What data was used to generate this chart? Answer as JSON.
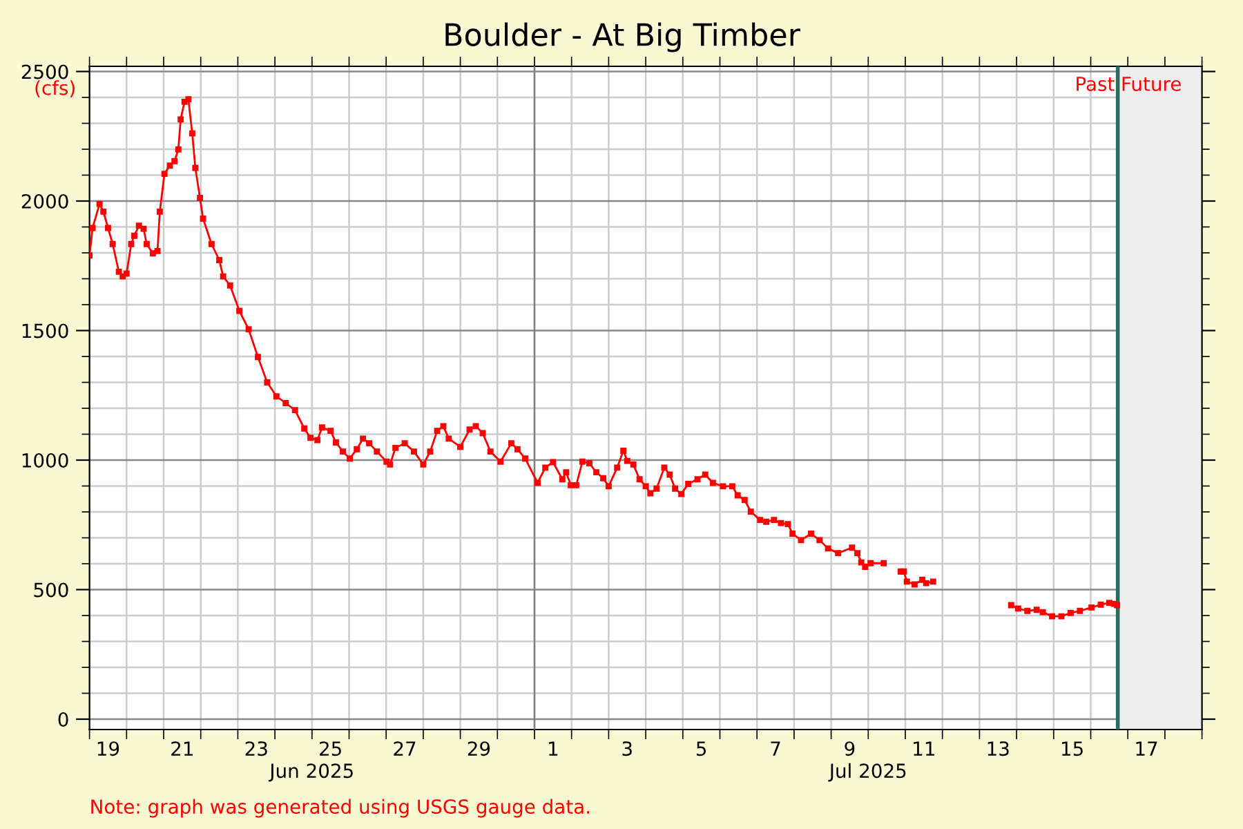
{
  "chart_data": {
    "type": "line",
    "title": "Boulder - At Big Timber",
    "ylabel": "(cfs)",
    "annotations": [
      "Note: graph was generated using USGS gauge data."
    ],
    "xlim": [
      "2025-06-19",
      "2025-07-19"
    ],
    "ylim": [
      -40,
      2520
    ],
    "xticks": [
      {
        "value": "2025-06-19T12:00",
        "label": "19"
      },
      {
        "value": "2025-06-21T12:00",
        "label": "21"
      },
      {
        "value": "2025-06-23T12:00",
        "label": "23"
      },
      {
        "value": "2025-06-25T12:00",
        "label": "25"
      },
      {
        "value": "2025-06-27T12:00",
        "label": "27"
      },
      {
        "value": "2025-06-29T12:00",
        "label": "29"
      },
      {
        "value": "2025-07-01T12:00",
        "label": "1"
      },
      {
        "value": "2025-07-03T12:00",
        "label": "3"
      },
      {
        "value": "2025-07-05T12:00",
        "label": "5"
      },
      {
        "value": "2025-07-07T12:00",
        "label": "7"
      },
      {
        "value": "2025-07-09T12:00",
        "label": "9"
      },
      {
        "value": "2025-07-11T12:00",
        "label": "11"
      },
      {
        "value": "2025-07-13T12:00",
        "label": "13"
      },
      {
        "value": "2025-07-15T12:00",
        "label": "15"
      },
      {
        "value": "2025-07-17T12:00",
        "label": "17"
      },
      {
        "value": "2025-06-19",
        "label": null
      },
      {
        "value": "2025-06-20",
        "label": null
      },
      {
        "value": "2025-06-21",
        "label": null
      },
      {
        "value": "2025-06-22",
        "label": null
      },
      {
        "value": "2025-06-23",
        "label": null
      },
      {
        "value": "2025-06-24",
        "label": null
      },
      {
        "value": "2025-06-25",
        "label": null
      },
      {
        "value": "2025-06-26",
        "label": null
      },
      {
        "value": "2025-06-27",
        "label": null
      },
      {
        "value": "2025-06-28",
        "label": null
      },
      {
        "value": "2025-06-29",
        "label": null
      },
      {
        "value": "2025-06-30",
        "label": null
      },
      {
        "value": "2025-07-01",
        "label": null
      },
      {
        "value": "2025-07-02",
        "label": null
      },
      {
        "value": "2025-07-03",
        "label": null
      },
      {
        "value": "2025-07-04",
        "label": null
      },
      {
        "value": "2025-07-05",
        "label": null
      },
      {
        "value": "2025-07-06",
        "label": null
      },
      {
        "value": "2025-07-07",
        "label": null
      },
      {
        "value": "2025-07-08",
        "label": null
      },
      {
        "value": "2025-07-09",
        "label": null
      },
      {
        "value": "2025-07-10",
        "label": null
      },
      {
        "value": "2025-07-11",
        "label": null
      },
      {
        "value": "2025-07-12",
        "label": null
      },
      {
        "value": "2025-07-13",
        "label": null
      },
      {
        "value": "2025-07-14",
        "label": null
      },
      {
        "value": "2025-07-15",
        "label": null
      },
      {
        "value": "2025-07-16",
        "label": null
      },
      {
        "value": "2025-07-17",
        "label": null
      },
      {
        "value": "2025-07-18",
        "label": null
      },
      {
        "value": "2025-07-19",
        "label": null
      }
    ],
    "x2lim": [
      "2025-06-19",
      "2025-07-19"
    ],
    "x2ticks": [
      {
        "value": "2025-06-25",
        "label": "Jun 2025"
      },
      {
        "value": "2025-07-10",
        "label": "Jul 2025"
      }
    ],
    "yticks": [
      0,
      500,
      1000,
      1500,
      2000,
      2500,
      {
        "value": 100,
        "label": null
      },
      {
        "value": 200,
        "label": null
      },
      {
        "value": 300,
        "label": null
      },
      {
        "value": 400,
        "label": null
      },
      {
        "value": 600,
        "label": null
      },
      {
        "value": 700,
        "label": null
      },
      {
        "value": 800,
        "label": null
      },
      {
        "value": 900,
        "label": null
      },
      {
        "value": 1100,
        "label": null
      },
      {
        "value": 1200,
        "label": null
      },
      {
        "value": 1300,
        "label": null
      },
      {
        "value": 1400,
        "label": null
      },
      {
        "value": 1600,
        "label": null
      },
      {
        "value": 1700,
        "label": null
      },
      {
        "value": 1800,
        "label": null
      },
      {
        "value": 1900,
        "label": null
      },
      {
        "value": 2100,
        "label": null
      },
      {
        "value": 2200,
        "label": null
      },
      {
        "value": 2300,
        "label": null
      },
      {
        "value": 2400,
        "label": null
      }
    ],
    "grid": true,
    "marker": "square",
    "line_style": "solid",
    "legend": false,
    "ref_lines": [
      {
        "axis": "x",
        "value": "2025-07-01",
        "label": null,
        "color": "#808080"
      },
      {
        "axis": "x",
        "value": "2025-07-16T17:30",
        "label": "Past",
        "color": "#2f6b5c"
      }
    ],
    "bands": [
      {
        "axis": "x",
        "from": "2025-07-16T17:30",
        "to": "2025-07-19",
        "label": "Future",
        "color": "#eeeeee"
      }
    ],
    "series": [
      {
        "color": "#ff0000",
        "x": [
          "2025-06-19T00:00",
          "2025-06-19T02:00",
          "2025-06-19T06:30",
          "2025-06-19T09:00",
          "2025-06-19T12:00",
          "2025-06-19T15:00",
          "2025-06-19T19:00",
          "2025-06-19T21:30",
          "2025-06-20T00:00",
          "2025-06-20T03:00",
          "2025-06-20T05:00",
          "2025-06-20T08:00",
          "2025-06-20T11:00",
          "2025-06-20T13:00",
          "2025-06-20T17:00",
          "2025-06-20T20:00",
          "2025-06-20T21:30",
          "2025-06-21T00:30",
          "2025-06-21T04:00",
          "2025-06-21T07:00",
          "2025-06-21T09:30",
          "2025-06-21T11:00",
          "2025-06-21T13:30",
          "2025-06-21T16:00",
          "2025-06-21T18:30",
          "2025-06-21T20:30",
          "2025-06-21T23:30",
          "2025-06-22T01:30",
          "2025-06-22T07:00",
          "2025-06-22T12:00",
          "2025-06-22T14:30",
          "2025-06-22T19:00",
          "2025-06-23T01:00",
          "2025-06-23T07:00",
          "2025-06-23T13:00",
          "2025-06-23T19:00",
          "2025-06-24T01:00",
          "2025-06-24T07:00",
          "2025-06-24T13:00",
          "2025-06-24T19:00",
          "2025-06-24T23:00",
          "2025-06-25T03:30",
          "2025-06-25T06:30",
          "2025-06-25T12:00",
          "2025-06-25T15:30",
          "2025-06-25T20:00",
          "2025-06-26T00:30",
          "2025-06-26T05:00",
          "2025-06-26T09:00",
          "2025-06-26T13:00",
          "2025-06-26T18:00",
          "2025-06-27T00:15",
          "2025-06-27T02:30",
          "2025-06-27T06:00",
          "2025-06-27T12:00",
          "2025-06-27T18:00",
          "2025-06-28T00:00",
          "2025-06-28T04:30",
          "2025-06-28T09:00",
          "2025-06-28T13:00",
          "2025-06-28T16:30",
          "2025-06-29T00:00",
          "2025-06-29T06:00",
          "2025-06-29T10:00",
          "2025-06-29T14:30",
          "2025-06-29T19:30",
          "2025-06-30T02:00",
          "2025-06-30T09:00",
          "2025-06-30T13:00",
          "2025-06-30T18:00",
          "2025-07-01T02:00",
          "2025-07-01T07:00",
          "2025-07-01T12:00",
          "2025-07-01T18:00",
          "2025-07-01T20:30",
          "2025-07-01T23:30",
          "2025-07-02T03:00",
          "2025-07-02T07:00",
          "2025-07-02T11:30",
          "2025-07-02T16:00",
          "2025-07-02T20:30",
          "2025-07-03T00:00",
          "2025-07-03T05:30",
          "2025-07-03T09:30",
          "2025-07-03T12:00",
          "2025-07-03T16:00",
          "2025-07-03T20:00",
          "2025-07-04T00:00",
          "2025-07-04T03:00",
          "2025-07-04T07:00",
          "2025-07-04T12:00",
          "2025-07-04T15:30",
          "2025-07-04T19:00",
          "2025-07-04T23:00",
          "2025-07-05T03:30",
          "2025-07-05T09:30",
          "2025-07-05T14:30",
          "2025-07-05T19:30",
          "2025-07-06T02:00",
          "2025-07-06T08:00",
          "2025-07-06T11:30",
          "2025-07-06T16:00",
          "2025-07-06T20:00",
          "2025-07-07T02:00",
          "2025-07-07T06:00",
          "2025-07-07T11:00",
          "2025-07-07T15:30",
          "2025-07-07T20:00",
          "2025-07-07T23:00",
          "2025-07-08T04:30",
          "2025-07-08T11:00",
          "2025-07-08T16:30",
          "2025-07-08T22:00",
          "2025-07-09T04:30",
          "2025-07-09T13:30",
          "2025-07-09T17:00",
          "2025-07-09T19:30",
          "2025-07-09T22:00",
          "2025-07-10T01:30",
          "2025-07-10T10:00",
          "2025-07-10T15:00",
          "2025-07-10T21:00",
          "2025-07-10T23:00",
          "2025-07-11T01:00",
          "2025-07-11T06:00",
          "2025-07-11T11:00",
          "2025-07-11T13:30",
          "2025-07-11T18:00",
          "2025-07-12T12:00",
          "2025-07-13T20:30",
          "2025-07-14T01:00",
          "2025-07-14T07:00",
          "2025-07-14T13:00",
          "2025-07-14T17:00",
          "2025-07-14T23:00",
          "2025-07-15T05:00",
          "2025-07-15T11:00",
          "2025-07-15T17:00",
          "2025-07-16T00:30",
          "2025-07-16T06:30",
          "2025-07-16T12:00",
          "2025-07-16T15:00",
          "2025-07-16T17:00"
        ],
        "values": [
          1790,
          1896,
          1989,
          1959,
          1896,
          1834,
          1727,
          1709,
          1720,
          1834,
          1866,
          1905,
          1893,
          1834,
          1798,
          1807,
          1959,
          2105,
          2137,
          2154,
          2199,
          2315,
          2383,
          2393,
          2261,
          2128,
          2012,
          1932,
          1834,
          1772,
          1709,
          1674,
          1576,
          1505,
          1398,
          1300,
          1246,
          1220,
          1193,
          1122,
          1086,
          1077,
          1126,
          1113,
          1068,
          1033,
          1006,
          1042,
          1083,
          1065,
          1033,
          994,
          983,
          1047,
          1065,
          1033,
          983,
          1033,
          1113,
          1131,
          1083,
          1051,
          1118,
          1131,
          1104,
          1033,
          994,
          1065,
          1042,
          1006,
          912,
          971,
          992,
          926,
          953,
          903,
          903,
          994,
          988,
          953,
          930,
          899,
          971,
          1036,
          997,
          983,
          926,
          899,
          872,
          890,
          971,
          944,
          890,
          869,
          908,
          926,
          944,
          912,
          899,
          899,
          864,
          846,
          801,
          769,
          762,
          769,
          757,
          753,
          716,
          691,
          716,
          691,
          659,
          641,
          662,
          641,
          605,
          588,
          602,
          602,
          null,
          570,
          570,
          531,
          520,
          538,
          525,
          531,
          null,
          440,
          427,
          418,
          422,
          413,
          397,
          397,
          410,
          418,
          431,
          442,
          449,
          445,
          440
        ]
      }
    ]
  }
}
